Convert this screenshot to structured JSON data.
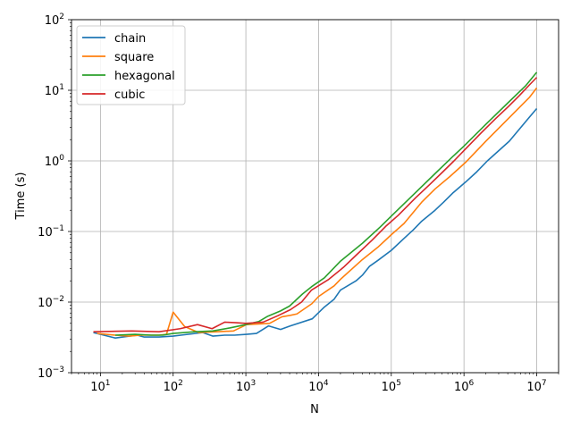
{
  "chart_data": {
    "type": "line",
    "title": "",
    "xlabel": "N",
    "ylabel": "Time (s)",
    "xscale": "log",
    "yscale": "log",
    "xlim": [
      4,
      20000000
    ],
    "ylim": [
      0.001,
      100
    ],
    "grid": true,
    "legend_position": "top-left",
    "x_ticks": [
      {
        "base": "10",
        "exp": "1",
        "value": 10
      },
      {
        "base": "10",
        "exp": "2",
        "value": 100
      },
      {
        "base": "10",
        "exp": "3",
        "value": 1000
      },
      {
        "base": "10",
        "exp": "4",
        "value": 10000
      },
      {
        "base": "10",
        "exp": "5",
        "value": 100000
      },
      {
        "base": "10",
        "exp": "6",
        "value": 1000000
      },
      {
        "base": "10",
        "exp": "7",
        "value": 10000000
      }
    ],
    "y_ticks": [
      {
        "base": "10",
        "exp": "−3",
        "value": 0.001
      },
      {
        "base": "10",
        "exp": "−2",
        "value": 0.01
      },
      {
        "base": "10",
        "exp": "−1",
        "value": 0.1
      },
      {
        "base": "10",
        "exp": "0",
        "value": 1
      },
      {
        "base": "10",
        "exp": "1",
        "value": 10
      },
      {
        "base": "10",
        "exp": "2",
        "value": 100
      }
    ],
    "series": [
      {
        "name": "chain",
        "color": "#1f77b4",
        "points": [
          [
            8,
            0.0037
          ],
          [
            16,
            0.0031
          ],
          [
            32,
            0.0034
          ],
          [
            40,
            0.0032
          ],
          [
            64,
            0.0032
          ],
          [
            100,
            0.0033
          ],
          [
            128,
            0.0034
          ],
          [
            256,
            0.0037
          ],
          [
            350,
            0.0033
          ],
          [
            512,
            0.0034
          ],
          [
            700,
            0.0034
          ],
          [
            1024,
            0.0035
          ],
          [
            1400,
            0.0036
          ],
          [
            2048,
            0.0046
          ],
          [
            3000,
            0.0041
          ],
          [
            4096,
            0.0046
          ],
          [
            8192,
            0.0058
          ],
          [
            12000,
            0.0085
          ],
          [
            16384,
            0.011
          ],
          [
            20000,
            0.0148
          ],
          [
            32768,
            0.02
          ],
          [
            40000,
            0.024
          ],
          [
            50000,
            0.032
          ],
          [
            65536,
            0.039
          ],
          [
            100000,
            0.054
          ],
          [
            150000,
            0.08
          ],
          [
            200000,
            0.105
          ],
          [
            262144,
            0.14
          ],
          [
            400000,
            0.2
          ],
          [
            524288,
            0.26
          ],
          [
            700000,
            0.35
          ],
          [
            1048576,
            0.5
          ],
          [
            1500000,
            0.7
          ],
          [
            2097152,
            1.0
          ],
          [
            4194304,
            1.9
          ],
          [
            8000000,
            4.2
          ],
          [
            10000000,
            5.5
          ]
        ]
      },
      {
        "name": "square",
        "color": "#ff7f0e",
        "points": [
          [
            9,
            0.0036
          ],
          [
            16,
            0.0034
          ],
          [
            25,
            0.0033
          ],
          [
            36,
            0.0034
          ],
          [
            64,
            0.0034
          ],
          [
            81,
            0.0035
          ],
          [
            100,
            0.0072
          ],
          [
            144,
            0.0045
          ],
          [
            225,
            0.0037
          ],
          [
            400,
            0.0038
          ],
          [
            676,
            0.0039
          ],
          [
            1024,
            0.0048
          ],
          [
            2116,
            0.005
          ],
          [
            3136,
            0.0062
          ],
          [
            4096,
            0.0065
          ],
          [
            5041,
            0.0068
          ],
          [
            8100,
            0.0095
          ],
          [
            10000,
            0.012
          ],
          [
            16384,
            0.017
          ],
          [
            20000,
            0.021
          ],
          [
            40000,
            0.04
          ],
          [
            65536,
            0.06
          ],
          [
            100000,
            0.09
          ],
          [
            150000,
            0.13
          ],
          [
            262144,
            0.26
          ],
          [
            400000,
            0.4
          ],
          [
            640000,
            0.6
          ],
          [
            1048576,
            0.95
          ],
          [
            2000000,
            1.9
          ],
          [
            4000000,
            3.9
          ],
          [
            8000000,
            8.0
          ],
          [
            10000000,
            10.8
          ]
        ]
      },
      {
        "name": "hexagonal",
        "color": "#2ca02c",
        "points": [
          [
            16,
            0.0034
          ],
          [
            30,
            0.0035
          ],
          [
            50,
            0.0034
          ],
          [
            72,
            0.0034
          ],
          [
            100,
            0.0036
          ],
          [
            200,
            0.0038
          ],
          [
            350,
            0.0039
          ],
          [
            600,
            0.0043
          ],
          [
            1000,
            0.0048
          ],
          [
            1500,
            0.0053
          ],
          [
            2000,
            0.0063
          ],
          [
            3000,
            0.0075
          ],
          [
            4000,
            0.0088
          ],
          [
            6000,
            0.013
          ],
          [
            8000,
            0.0165
          ],
          [
            12000,
            0.022
          ],
          [
            20000,
            0.038
          ],
          [
            40000,
            0.068
          ],
          [
            70000,
            0.115
          ],
          [
            100000,
            0.165
          ],
          [
            200000,
            0.33
          ],
          [
            400000,
            0.66
          ],
          [
            700000,
            1.15
          ],
          [
            1000000,
            1.62
          ],
          [
            2000000,
            3.3
          ],
          [
            4000000,
            6.6
          ],
          [
            7000000,
            11.5
          ],
          [
            10000000,
            18.0
          ]
        ]
      },
      {
        "name": "cubic",
        "color": "#d62728",
        "points": [
          [
            8,
            0.0038
          ],
          [
            27,
            0.0039
          ],
          [
            64,
            0.0038
          ],
          [
            125,
            0.0042
          ],
          [
            216,
            0.0048
          ],
          [
            343,
            0.0042
          ],
          [
            512,
            0.0052
          ],
          [
            729,
            0.0051
          ],
          [
            1000,
            0.005
          ],
          [
            1728,
            0.0052
          ],
          [
            2744,
            0.0064
          ],
          [
            4096,
            0.0078
          ],
          [
            5832,
            0.01
          ],
          [
            8000,
            0.0148
          ],
          [
            13824,
            0.021
          ],
          [
            21952,
            0.031
          ],
          [
            32768,
            0.046
          ],
          [
            54872,
            0.076
          ],
          [
            85184,
            0.12
          ],
          [
            125000,
            0.17
          ],
          [
            216000,
            0.3
          ],
          [
            343000,
            0.47
          ],
          [
            512000,
            0.7
          ],
          [
            729000,
            1.0
          ],
          [
            1000000,
            1.4
          ],
          [
            1728000,
            2.5
          ],
          [
            2744000,
            4.0
          ],
          [
            4096000,
            5.9
          ],
          [
            5832000,
            8.5
          ],
          [
            8000000,
            12.0
          ],
          [
            10000000,
            15.2
          ]
        ]
      }
    ]
  }
}
